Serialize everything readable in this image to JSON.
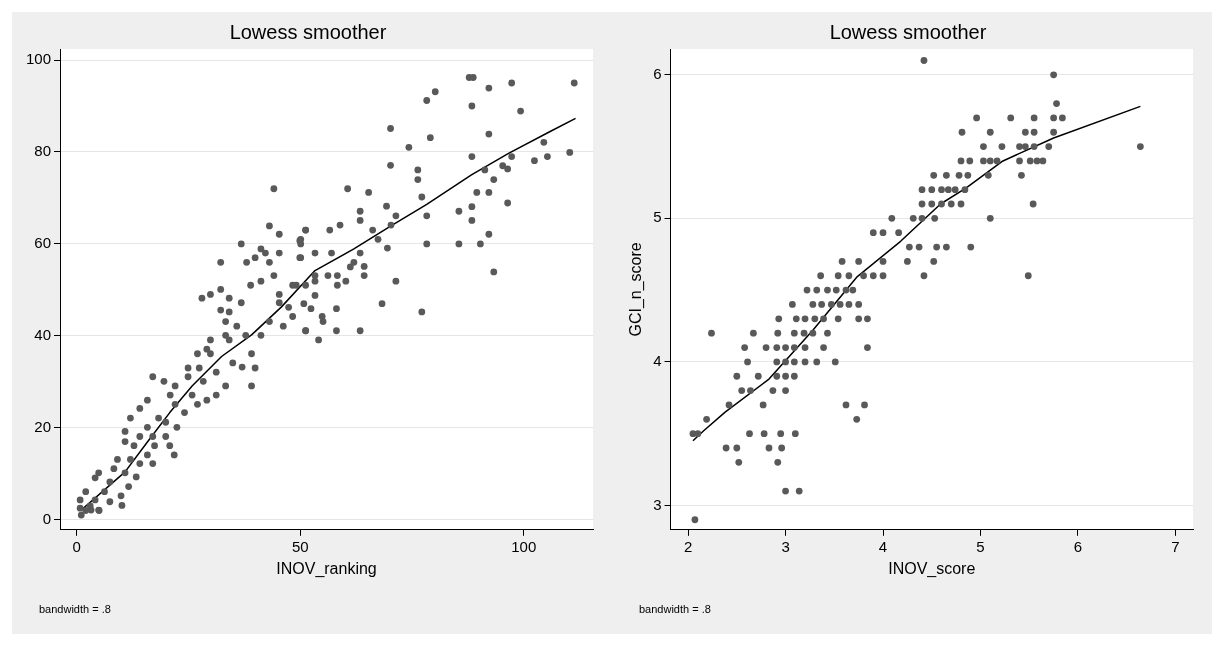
{
  "chart_data": [
    {
      "type": "scatter",
      "title": "Lowess smoother",
      "xlabel": "INOV_ranking",
      "annotations": [
        "bandwidth = .8"
      ],
      "xlim": [
        -3.75,
        115.5
      ],
      "ylim": [
        -2.2,
        102.4
      ],
      "xticks": [
        0,
        50,
        100
      ],
      "yticks": [
        0,
        20,
        40,
        60,
        80,
        100
      ],
      "grid": "y",
      "series": [
        {
          "color": "#595959",
          "marker": "circle",
          "x": [
            44.1,
            43.1,
            45.3,
            36.8,
            51.2,
            50.1,
            50.1,
            41.2,
            42.2,
            45.3,
            39.9,
            38.0,
            32.2,
            43.1,
            50.1,
            44.1,
            41.2,
            38.9,
            32.2,
            29.9,
            28.0,
            34.1,
            36.8,
            45.3,
            48.3,
            45.3,
            32.2,
            34.1,
            47.4,
            33.3,
            35.8,
            43.1,
            46.2,
            48.3,
            51.2,
            41.2,
            37.8,
            33.3,
            29.9,
            34.1,
            29.1,
            27.0,
            29.9,
            39.1,
            34.9,
            37.0,
            39.9,
            24.9,
            27.4,
            31.2,
            17.0,
            19.5,
            24.9,
            28.3,
            22.0,
            33.3,
            39.1,
            20.9,
            25.8,
            31.2,
            15.8,
            22.0,
            29.1,
            27.0,
            14.1,
            24.1,
            12.0,
            18.3,
            19.9,
            10.8,
            15.8,
            22.4,
            10.8,
            14.1,
            17.0,
            19.9,
            12.8,
            17.4,
            20.8,
            15.8,
            21.8,
            9.1,
            12.0,
            14.1,
            17.0,
            8.3,
            4.9,
            10.8,
            13.3,
            4.1,
            7.4,
            11.6,
            2.0,
            6.2,
            9.9,
            0.75,
            4.1,
            7.4,
            10.1,
            0.75,
            3.2,
            4.9,
            1,
            2,
            3,
            5,
            87.8,
            88.7,
            80.2,
            78.3,
            92.2,
            97.3,
            111.3,
            88.4,
            99.3,
            70.2,
            79.1,
            92.2,
            74.3,
            70.2,
            76.3,
            76.3,
            88.4,
            97.3,
            91.3,
            95.3,
            96.4,
            93.3,
            102.4,
            105.3,
            110.3,
            104.5,
            60.6,
            65.3,
            89.5,
            92.2,
            77.2,
            96.4,
            69.3,
            63.4,
            63.4,
            71.4,
            78.3,
            85.5,
            88.4,
            88.4,
            58.9,
            56.6,
            51.2,
            66.2,
            70.3,
            67.4,
            69.5,
            49.9,
            78.3,
            85.5,
            90.3,
            92.2,
            49.9,
            53.3,
            57.0,
            63.4,
            62.0,
            64.3,
            61.2,
            53.3,
            56.2,
            58.3,
            64.3,
            93.3,
            71.4,
            60.2,
            53.3,
            49.1,
            51.2,
            58.3,
            53.3,
            50.8,
            52.4,
            68.3,
            58.1,
            54.9,
            55.1,
            77.2,
            51.2,
            58.1,
            63.4,
            54.1
          ],
          "values": [
            72.0,
            63.9,
            62.1,
            60.0,
            63.0,
            61.0,
            60.0,
            58.9,
            58.0,
            58.0,
            57.0,
            56.0,
            56.0,
            56.0,
            57.0,
            53.1,
            51.9,
            51.0,
            50.1,
            49.0,
            48.2,
            48.2,
            47.2,
            49.0,
            51.0,
            47.2,
            45.6,
            45.2,
            46.2,
            43.1,
            42.1,
            43.1,
            42.1,
            44.2,
            41.1,
            40.1,
            40.1,
            40.1,
            39.1,
            39.1,
            37.1,
            36.1,
            36.1,
            36.1,
            34.1,
            33.2,
            33.0,
            33.0,
            33.0,
            32.1,
            31.1,
            30.1,
            31.1,
            30.1,
            29.1,
            29.1,
            29.1,
            27.1,
            27.1,
            27.1,
            26.0,
            25.1,
            26.0,
            25.1,
            24.2,
            23.3,
            22.1,
            22.1,
            21.2,
            19.2,
            20.1,
            20.1,
            17.0,
            18.1,
            18.1,
            18.1,
            16.1,
            16.1,
            16.1,
            14.1,
            14.1,
            13.1,
            13.1,
            12.2,
            12.2,
            11.1,
            10.2,
            10.2,
            9.3,
            9.1,
            8.2,
            7.2,
            6.1,
            6.1,
            5.2,
            4.3,
            4.3,
            3.9,
            3.1,
            2.5,
            2.1,
            2.1,
            1,
            2,
            3,
            2,
            96.2,
            96.2,
            93.1,
            91.2,
            93.9,
            95.0,
            95.0,
            90.0,
            88.9,
            85.1,
            83.1,
            83.9,
            81.0,
            77.1,
            76.1,
            74.0,
            79.0,
            79.0,
            76.1,
            77.0,
            76.3,
            74.0,
            78.1,
            79.0,
            79.9,
            82.1,
            72.0,
            71.2,
            71.2,
            71.2,
            70.2,
            68.9,
            68.2,
            67.1,
            65.1,
            66.1,
            66.1,
            67.1,
            68.1,
            65.1,
            64.1,
            63.0,
            63.0,
            63.0,
            64.1,
            61.0,
            59.1,
            60.7,
            60.0,
            60.0,
            60.0,
            62.1,
            57.0,
            58.0,
            58.0,
            58.0,
            56.0,
            55.1,
            55.0,
            53.1,
            53.1,
            53.1,
            53.1,
            53.9,
            51.9,
            51.9,
            51.9,
            51.0,
            51.0,
            51.0,
            48.8,
            47.0,
            45.9,
            47.0,
            45.9,
            44.2,
            43.1,
            45.2,
            41.1,
            41.1,
            41.1,
            39.1
          ]
        },
        {
          "type": "line",
          "color": "#000000",
          "marker": "none",
          "x": [
            1,
            10.8,
            15.8,
            20.8,
            25.8,
            32.4,
            39.1,
            45.8,
            53.3,
            62.0,
            70.3,
            78.3,
            88.3,
            96.6,
            105.8,
            111.6
          ],
          "values": [
            2.1,
            10.4,
            16.9,
            23.3,
            29.1,
            35.5,
            40.2,
            46.3,
            54.2,
            58.9,
            63.9,
            68.6,
            75.0,
            79.7,
            84.4,
            87.3
          ]
        }
      ]
    },
    {
      "type": "scatter",
      "title": "Lowess smoother",
      "xlabel": "INOV_score",
      "ylabel": "GCI_n_score",
      "annotations": [
        "bandwidth = .8"
      ],
      "xlim": [
        1.82,
        7.18
      ],
      "ylim": [
        2.83,
        6.18
      ],
      "xticks": [
        2,
        3,
        4,
        5,
        6,
        7
      ],
      "yticks": [
        3,
        4,
        5,
        6
      ],
      "grid": "y",
      "series": [
        {
          "color": "#595959",
          "marker": "circle",
          "x": [
            4.42,
            4.52,
            4.4,
            4.5,
            4.6,
            4.4,
            4.5,
            4.6,
            4.09,
            4.31,
            4.4,
            4.53,
            3.9,
            4.0,
            4.16,
            4.27,
            4.37,
            4.55,
            3.58,
            3.75,
            4.0,
            4.25,
            4.52,
            3.36,
            3.54,
            3.65,
            3.8,
            3.9,
            4.0,
            4.42,
            3.22,
            3.32,
            3.43,
            3.52,
            3.62,
            3.69,
            3.07,
            3.28,
            3.37,
            3.47,
            3.56,
            3.65,
            3.75,
            2.93,
            3.11,
            3.2,
            3.3,
            3.39,
            3.54,
            3.75,
            3.84,
            2.24,
            2.67,
            2.92,
            3.09,
            3.19,
            3.28,
            3.43,
            2.58,
            2.8,
            2.91,
            3.0,
            3.09,
            3.2,
            3.39,
            3.84,
            2.61,
            2.91,
            3.0,
            3.09,
            3.2,
            3.32,
            3.51,
            2.5,
            2.72,
            2.91,
            3.0,
            3.09,
            2.55,
            2.64,
            2.87,
            3.0,
            2.42,
            2.77,
            3.62,
            3.81,
            2.19,
            3.73,
            2.63,
            2.78,
            2.95,
            3.1,
            2.05,
            2.1,
            2.39,
            2.5,
            2.83,
            2.96,
            2.52,
            2.92,
            3.0,
            3.14,
            2.07,
            5.75,
            5.78,
            4.96,
            5.31,
            5.55,
            5.75,
            5.84,
            4.81,
            5.1,
            5.46,
            5.55,
            5.75,
            5.03,
            5.22,
            5.4,
            5.46,
            5.55,
            5.7,
            6.64,
            4.8,
            4.89,
            5.03,
            5.1,
            5.17,
            5.4,
            5.51,
            5.58,
            5.64,
            4.65,
            4.78,
            4.87,
            5.08,
            5.42,
            4.67,
            4.74,
            4.84,
            4.7,
            4.8,
            5.54,
            5.1,
            4.65,
            4.9,
            5.49
          ],
          "values": [
            6.1,
            5.3,
            5.2,
            5.2,
            5.2,
            5.1,
            5.1,
            5.1,
            5.0,
            5.0,
            5.0,
            5.0,
            4.9,
            4.9,
            4.9,
            4.8,
            4.8,
            4.8,
            4.7,
            4.7,
            4.7,
            4.7,
            4.7,
            4.6,
            4.6,
            4.6,
            4.6,
            4.6,
            4.6,
            4.6,
            4.5,
            4.5,
            4.5,
            4.5,
            4.5,
            4.5,
            4.4,
            4.4,
            4.4,
            4.4,
            4.4,
            4.4,
            4.4,
            4.3,
            4.3,
            4.3,
            4.3,
            4.3,
            4.3,
            4.3,
            4.3,
            4.2,
            4.2,
            4.2,
            4.2,
            4.2,
            4.2,
            4.2,
            4.1,
            4.1,
            4.1,
            4.1,
            4.1,
            4.1,
            4.1,
            4.1,
            4.0,
            4.0,
            4.0,
            4.0,
            4.0,
            4.0,
            4.0,
            3.9,
            3.9,
            3.9,
            3.9,
            3.9,
            3.8,
            3.8,
            3.8,
            3.8,
            3.7,
            3.7,
            3.7,
            3.7,
            3.6,
            3.6,
            3.5,
            3.5,
            3.5,
            3.5,
            3.5,
            3.5,
            3.4,
            3.4,
            3.4,
            3.4,
            3.3,
            3.3,
            3.1,
            3.1,
            2.9,
            6.0,
            5.8,
            5.7,
            5.7,
            5.7,
            5.7,
            5.7,
            5.6,
            5.6,
            5.6,
            5.6,
            5.6,
            5.5,
            5.5,
            5.5,
            5.5,
            5.5,
            5.5,
            5.5,
            5.4,
            5.4,
            5.4,
            5.4,
            5.4,
            5.4,
            5.4,
            5.4,
            5.4,
            5.3,
            5.3,
            5.3,
            5.3,
            5.3,
            5.2,
            5.2,
            5.2,
            5.1,
            5.1,
            5.1,
            5.0,
            4.8,
            4.8,
            4.6
          ]
        },
        {
          "type": "line",
          "color": "#000000",
          "marker": "none",
          "x": [
            2.05,
            2.16,
            2.38,
            2.83,
            3.28,
            3.73,
            4.18,
            4.59,
            4.85,
            5.23,
            5.75,
            6.64
          ],
          "values": [
            3.45,
            3.52,
            3.65,
            3.88,
            4.22,
            4.59,
            4.84,
            5.1,
            5.21,
            5.4,
            5.56,
            5.78
          ]
        }
      ]
    }
  ]
}
